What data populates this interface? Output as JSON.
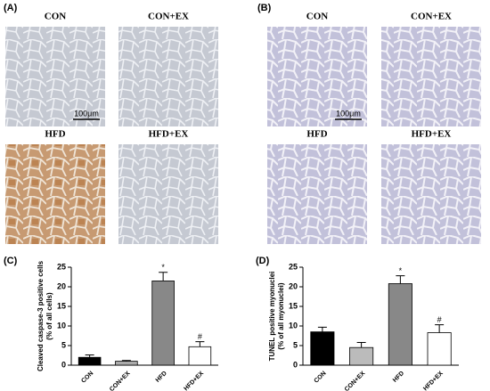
{
  "micrographs": [
    {
      "panel": "(A)",
      "scale_bar": "100μm",
      "images": [
        {
          "label": "CON"
        },
        {
          "label": "CON+EX"
        },
        {
          "label": "HFD"
        },
        {
          "label": "HFD+EX"
        }
      ]
    },
    {
      "panel": "(B)",
      "scale_bar": "100μm",
      "images": [
        {
          "label": "CON"
        },
        {
          "label": "CON+EX"
        },
        {
          "label": "HFD"
        },
        {
          "label": "HFD+EX"
        }
      ]
    }
  ],
  "chart_data": [
    {
      "type": "bar",
      "panel": "(C)",
      "ylabel": [
        "Cleaved caspase-3 positive cells",
        "(% of all cells)"
      ],
      "categories": [
        "CON",
        "CON+EX",
        "HFD",
        "HFD+EX"
      ],
      "values": [
        2,
        1,
        21.5,
        4.7
      ],
      "errors": [
        0.6,
        0.2,
        2.2,
        1.3
      ],
      "colors": [
        "#000000",
        "#aaaaaa",
        "#888888",
        "#ffffff"
      ],
      "annotations": [
        {
          "text": "*",
          "x": "HFD"
        },
        {
          "text": "#",
          "x": "HFD+EX"
        }
      ],
      "ylim": [
        0,
        25
      ],
      "yticks": [
        0,
        5,
        10,
        15,
        20,
        25
      ]
    },
    {
      "type": "bar",
      "panel": "(D)",
      "ylabel": [
        "TUNEL positive myonuclei",
        "(% of all myonuclei)"
      ],
      "categories": [
        "CON",
        "CON+EX",
        "HFD",
        "HFD+EX"
      ],
      "values": [
        8.5,
        4.5,
        20.8,
        8.3
      ],
      "errors": [
        1.2,
        1.3,
        2.0,
        2.0
      ],
      "colors": [
        "#000000",
        "#bbbbbb",
        "#888888",
        "#ffffff"
      ],
      "annotations": [
        {
          "text": "*",
          "x": "HFD"
        },
        {
          "text": "#",
          "x": "HFD+EX"
        }
      ],
      "ylim": [
        0,
        25
      ],
      "yticks": [
        0,
        5,
        10,
        15,
        20,
        25
      ]
    }
  ]
}
